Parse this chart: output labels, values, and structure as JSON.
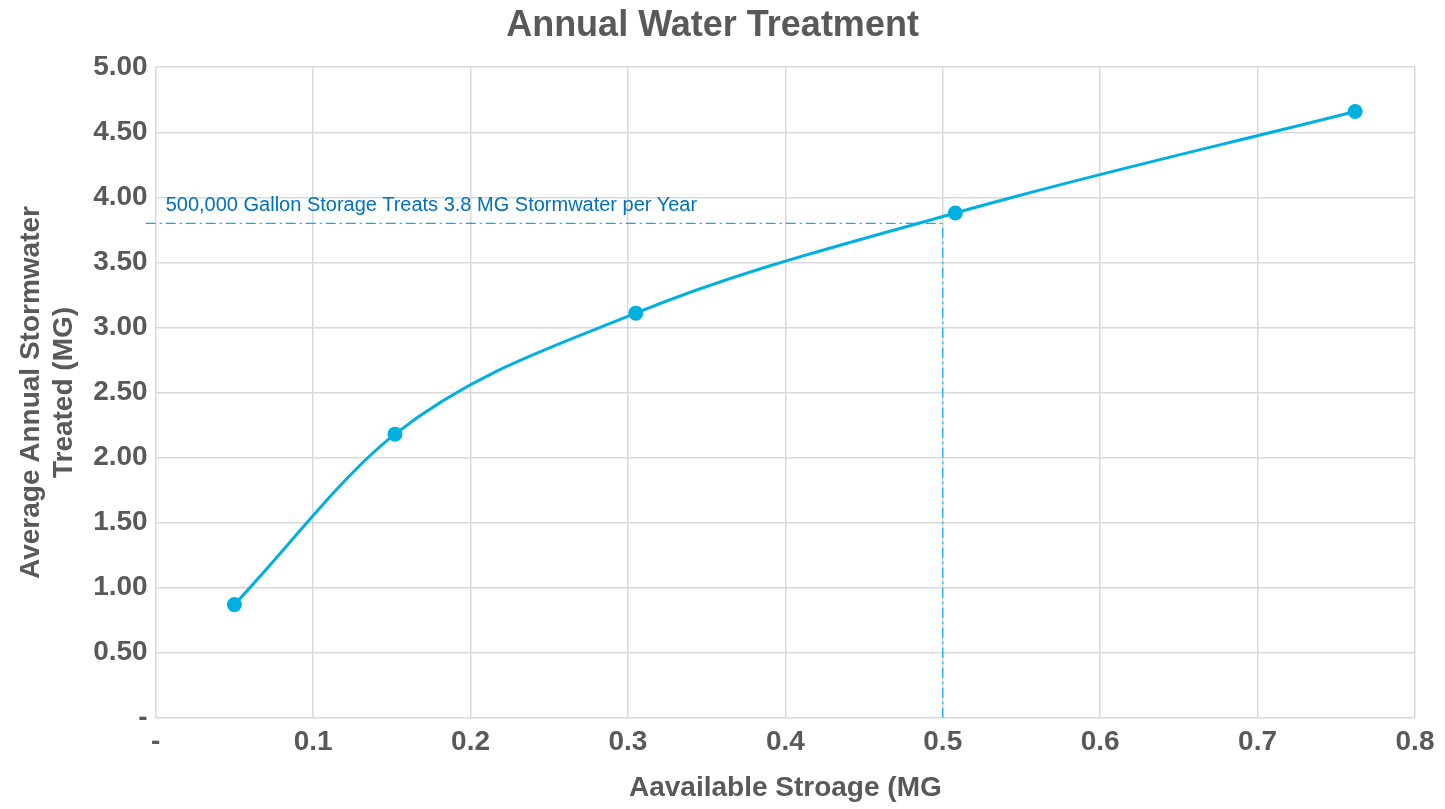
{
  "chart_data": {
    "type": "line",
    "title": "Annual Water Treatment",
    "xlabel": "Aavailable Stroage (MG",
    "ylabel": "Average Annual Stormwater Treated (MG)",
    "series": [
      {
        "color": "#00b0e0",
        "x": [
          0.05,
          0.152,
          0.305,
          0.508,
          0.762
        ],
        "values": [
          0.87,
          2.18,
          3.11,
          3.88,
          4.66
        ]
      }
    ],
    "xlim": [
      0,
      0.8
    ],
    "xticks": [
      {
        "value": 0,
        "label": "-"
      },
      0.1,
      0.2,
      0.3,
      0.4,
      0.5,
      0.6,
      0.7,
      0.8
    ],
    "ylim": [
      0,
      5
    ],
    "yticks": [
      {
        "value": 0,
        "label": "-"
      },
      {
        "value": 0.5,
        "label": "0.50"
      },
      {
        "value": 1,
        "label": "1.00"
      },
      {
        "value": 1.5,
        "label": "1.50"
      },
      {
        "value": 2,
        "label": "2.00"
      },
      {
        "value": 2.5,
        "label": "2.50"
      },
      {
        "value": 3,
        "label": "3.00"
      },
      {
        "value": 3.5,
        "label": "3.50"
      },
      {
        "value": 4,
        "label": "4.00"
      },
      {
        "value": 4.5,
        "label": "4.50"
      },
      {
        "value": 5,
        "label": "5.00"
      }
    ],
    "ref_lines": [
      {
        "axis": "y",
        "value": 3.8,
        "label": "500,000 Gallon Storage Treats 3.8 MG Stormwater per Year",
        "color": "#00b0f0",
        "line_style": "dashed"
      },
      {
        "axis": "x",
        "value": 0.5,
        "color": "#00b0f0",
        "line_style": "dashed"
      }
    ],
    "grid": true,
    "legend": false,
    "marker": "circle",
    "line_style": "solid"
  }
}
